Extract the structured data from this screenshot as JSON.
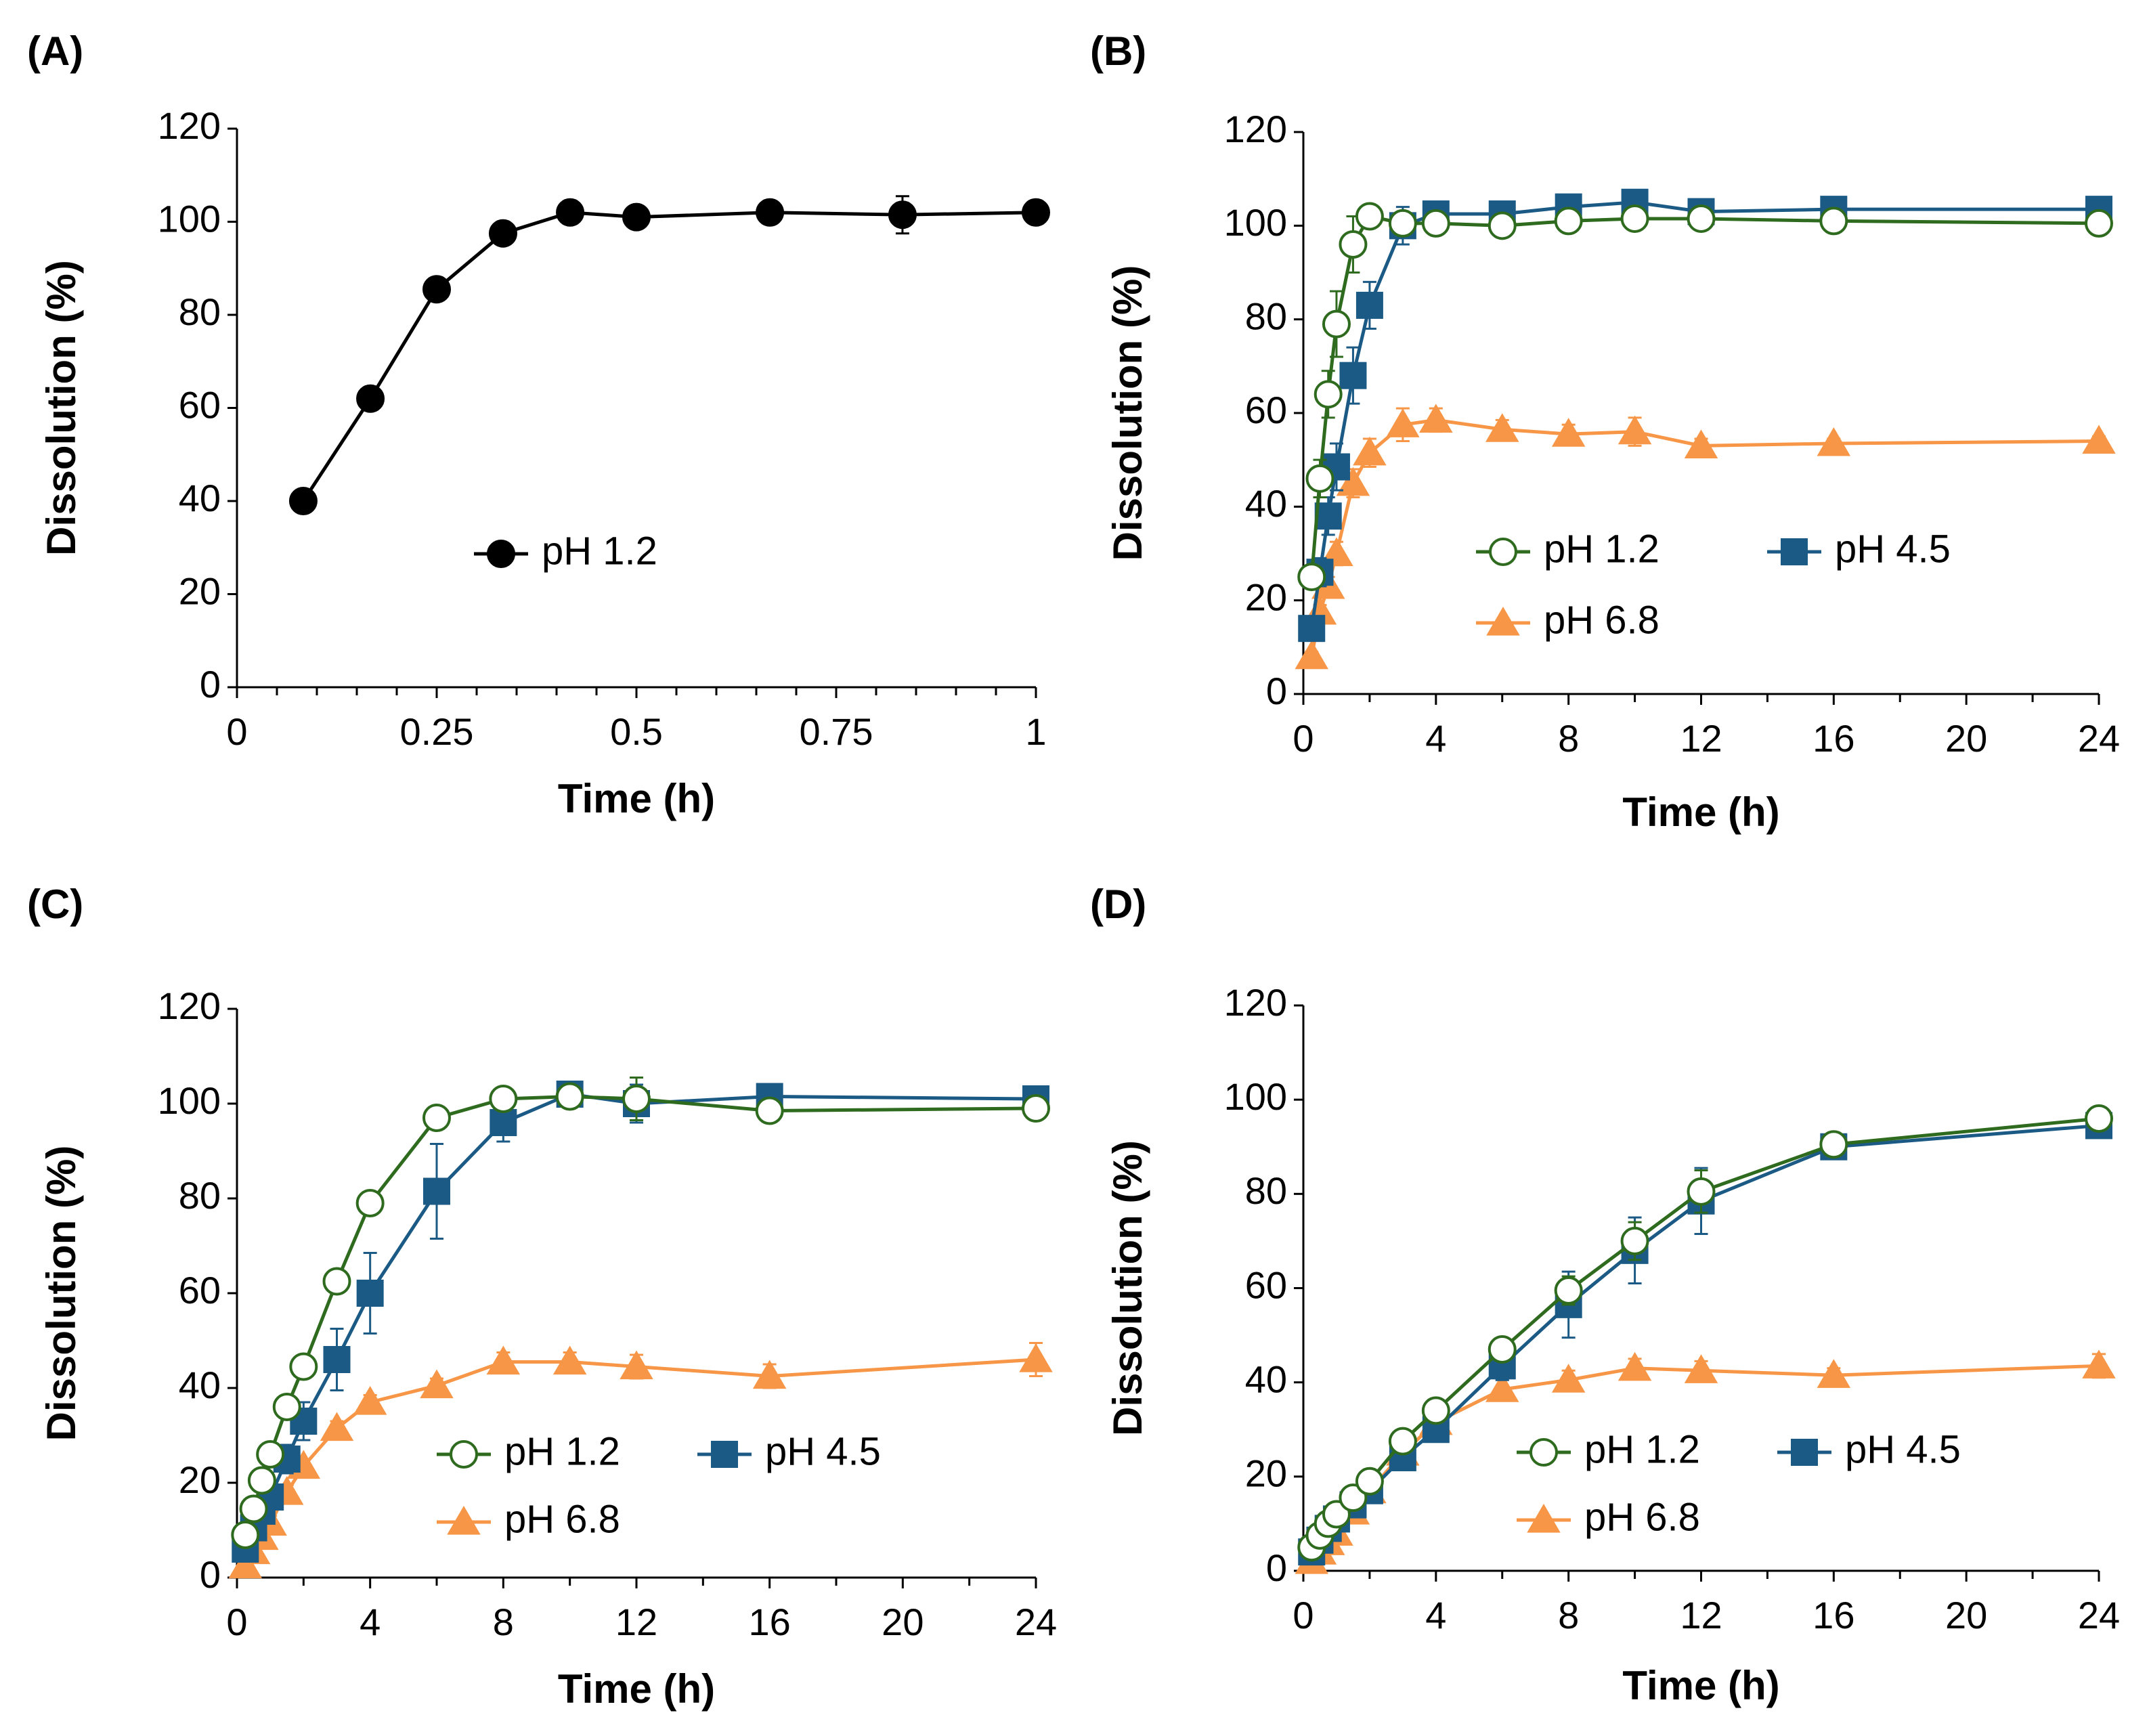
{
  "chart_data": [
    {
      "panel": "(A)",
      "type": "line",
      "xlabel": "Time (h)",
      "ylabel": "Dissolution (%)",
      "xlim": [
        0,
        1
      ],
      "ylim": [
        0,
        120
      ],
      "xticks": [
        0,
        0.25,
        0.5,
        0.75,
        1
      ],
      "xtick_labels": [
        "0",
        "0.25",
        "0.5",
        "0.75",
        "1"
      ],
      "yticks": [
        0,
        20,
        40,
        60,
        80,
        100,
        120
      ],
      "ytick_labels": [
        "0",
        "20",
        "40",
        "60",
        "80",
        "100",
        "120"
      ],
      "series": [
        {
          "name": "pH 1.2",
          "color": "#000000",
          "marker": "circle-filled",
          "x": [
            0.083,
            0.167,
            0.25,
            0.333,
            0.417,
            0.5,
            0.667,
            0.833,
            1.0
          ],
          "y": [
            40,
            62,
            85.5,
            97.5,
            102,
            101,
            102,
            101.5,
            102
          ],
          "err": [
            0,
            0.8,
            1.2,
            0.8,
            0.8,
            0.8,
            1.5,
            4,
            0.8
          ]
        }
      ]
    },
    {
      "panel": "(B)",
      "type": "line",
      "xlabel": "Time (h)",
      "ylabel": "Dissolution (%)",
      "xlim": [
        0,
        24
      ],
      "ylim": [
        0,
        120
      ],
      "xticks": [
        0,
        4,
        8,
        12,
        16,
        20,
        24
      ],
      "xtick_labels": [
        "0",
        "4",
        "8",
        "12",
        "16",
        "20",
        "24"
      ],
      "yticks": [
        0,
        20,
        40,
        60,
        80,
        100,
        120
      ],
      "ytick_labels": [
        "0",
        "20",
        "40",
        "60",
        "80",
        "100",
        "120"
      ],
      "series": [
        {
          "name": "pH 1.2",
          "color": "#2e6b1f",
          "marker": "circle-open",
          "x": [
            0.25,
            0.5,
            0.75,
            1,
            1.5,
            2,
            3,
            4,
            6,
            8,
            10,
            12,
            16,
            24
          ],
          "y": [
            25,
            46,
            64,
            79,
            96,
            102,
            100.5,
            100.5,
            100,
            101,
            101.5,
            101.5,
            101,
            100.5
          ],
          "err": [
            1.5,
            4,
            5,
            7,
            6,
            2,
            2,
            1.5,
            1,
            1,
            1,
            1,
            1,
            1
          ]
        },
        {
          "name": "pH 4.5",
          "color": "#1b5a85",
          "marker": "square-filled",
          "x": [
            0.25,
            0.5,
            0.75,
            1,
            1.5,
            2,
            3,
            4,
            6,
            8,
            10,
            12,
            16,
            24
          ],
          "y": [
            14,
            26,
            38,
            48.5,
            68,
            83,
            100,
            102.5,
            102.5,
            104,
            105,
            103,
            103.5,
            103.5
          ],
          "err": [
            2,
            3,
            4,
            5,
            6,
            5,
            4,
            2,
            1.5,
            1.5,
            1.5,
            1.5,
            1,
            1
          ]
        },
        {
          "name": "pH 6.8",
          "color": "#f79646",
          "marker": "triangle-filled",
          "x": [
            0.25,
            0.5,
            0.75,
            1,
            1.5,
            2,
            3,
            4,
            6,
            8,
            10,
            12,
            16,
            24
          ],
          "y": [
            8,
            17.5,
            23,
            30,
            45,
            51.5,
            57.5,
            58.5,
            56.5,
            55.5,
            56,
            53,
            53.5,
            54
          ],
          "err": [
            1,
            1.5,
            2,
            2.5,
            3,
            3,
            3.5,
            2.5,
            2,
            2,
            3,
            1.5,
            1,
            1
          ]
        }
      ]
    },
    {
      "panel": "(C)",
      "type": "line",
      "xlabel": "Time (h)",
      "ylabel": "Dissolution (%)",
      "xlim": [
        0,
        24
      ],
      "ylim": [
        0,
        120
      ],
      "xticks": [
        0,
        4,
        8,
        12,
        16,
        20,
        24
      ],
      "xtick_labels": [
        "0",
        "4",
        "8",
        "12",
        "16",
        "20",
        "24"
      ],
      "yticks": [
        0,
        20,
        40,
        60,
        80,
        100,
        120
      ],
      "ytick_labels": [
        "0",
        "20",
        "40",
        "60",
        "80",
        "100",
        "120"
      ],
      "series": [
        {
          "name": "pH 1.2",
          "color": "#2e6b1f",
          "marker": "circle-open",
          "x": [
            0.25,
            0.5,
            0.75,
            1,
            1.5,
            2,
            3,
            4,
            6,
            8,
            10,
            12,
            16,
            24
          ],
          "y": [
            9,
            14.5,
            20.5,
            26,
            36,
            44.5,
            62.5,
            79,
            97,
            101,
            101.5,
            101,
            98.5,
            99
          ],
          "err": [
            1,
            1,
            1.5,
            1.5,
            2,
            2,
            2,
            1.5,
            1.5,
            1,
            1.5,
            4.5,
            1.5,
            1
          ]
        },
        {
          "name": "pH 4.5",
          "color": "#1b5a85",
          "marker": "square-filled",
          "x": [
            0.25,
            0.5,
            0.75,
            1,
            1.5,
            2,
            3,
            4,
            6,
            8,
            10,
            12,
            16,
            24
          ],
          "y": [
            6,
            10.5,
            14,
            17,
            25,
            33,
            46,
            60,
            81.5,
            96,
            102,
            100,
            101.5,
            101
          ],
          "err": [
            1,
            1.5,
            2,
            2,
            3,
            4,
            6.5,
            8.5,
            10,
            4,
            2,
            4,
            1.5,
            2
          ]
        },
        {
          "name": "pH 6.8",
          "color": "#f79646",
          "marker": "triangle-filled",
          "x": [
            0.25,
            0.5,
            0.75,
            1,
            1.5,
            2,
            3,
            4,
            6,
            8,
            10,
            12,
            16,
            24
          ],
          "y": [
            2.5,
            5.5,
            8.5,
            11.5,
            18,
            23.5,
            31.5,
            37,
            40.5,
            45.5,
            45.5,
            44.5,
            42.5,
            46
          ],
          "err": [
            0.5,
            1,
            1,
            1.5,
            1.5,
            1.5,
            1.5,
            1.5,
            1.5,
            2,
            2,
            2.5,
            2.5,
            3.5
          ]
        }
      ]
    },
    {
      "panel": "(D)",
      "type": "line",
      "xlabel": "Time (h)",
      "ylabel": "Dissolution (%)",
      "xlim": [
        0,
        24
      ],
      "ylim": [
        0,
        120
      ],
      "xticks": [
        0,
        4,
        8,
        12,
        16,
        20,
        24
      ],
      "xtick_labels": [
        "0",
        "4",
        "8",
        "12",
        "16",
        "20",
        "24"
      ],
      "yticks": [
        0,
        20,
        40,
        60,
        80,
        100,
        120
      ],
      "ytick_labels": [
        "0",
        "20",
        "40",
        "60",
        "80",
        "100",
        "120"
      ],
      "series": [
        {
          "name": "pH 1.2",
          "color": "#2e6b1f",
          "marker": "circle-open",
          "x": [
            0.25,
            0.5,
            0.75,
            1,
            1.5,
            2,
            3,
            4,
            6,
            8,
            10,
            12,
            16,
            24
          ],
          "y": [
            5,
            7.5,
            10,
            12,
            15.5,
            19,
            27.5,
            34,
            47,
            59.5,
            70,
            80.5,
            90.5,
            96
          ],
          "err": [
            0.5,
            1,
            1,
            1,
            1,
            1,
            1.5,
            1.5,
            2,
            3,
            4,
            4.5,
            1.5,
            1
          ]
        },
        {
          "name": "pH 4.5",
          "color": "#1b5a85",
          "marker": "square-filled",
          "x": [
            0.25,
            0.5,
            0.75,
            1,
            1.5,
            2,
            3,
            4,
            6,
            8,
            10,
            12,
            16,
            24
          ],
          "y": [
            4,
            6.5,
            9,
            11,
            14,
            17,
            24,
            30,
            43.5,
            56.5,
            68,
            78.5,
            90,
            94.5
          ],
          "err": [
            0.5,
            1,
            1,
            1,
            1.5,
            1.5,
            2,
            2,
            3,
            7,
            7,
            7,
            1.5,
            1.5
          ]
        },
        {
          "name": "pH 6.8",
          "color": "#f79646",
          "marker": "triangle-filled",
          "x": [
            0.25,
            0.5,
            0.75,
            1,
            1.5,
            2,
            3,
            4,
            6,
            8,
            10,
            12,
            16,
            24
          ],
          "y": [
            2,
            4,
            6,
            8,
            12.5,
            17,
            25,
            31.5,
            38.5,
            40.5,
            43,
            42.5,
            41.5,
            43.5
          ],
          "err": [
            0.5,
            0.5,
            1,
            1,
            1,
            1,
            1.5,
            1.5,
            2,
            2,
            2,
            2,
            1.5,
            2.5
          ]
        }
      ]
    }
  ]
}
